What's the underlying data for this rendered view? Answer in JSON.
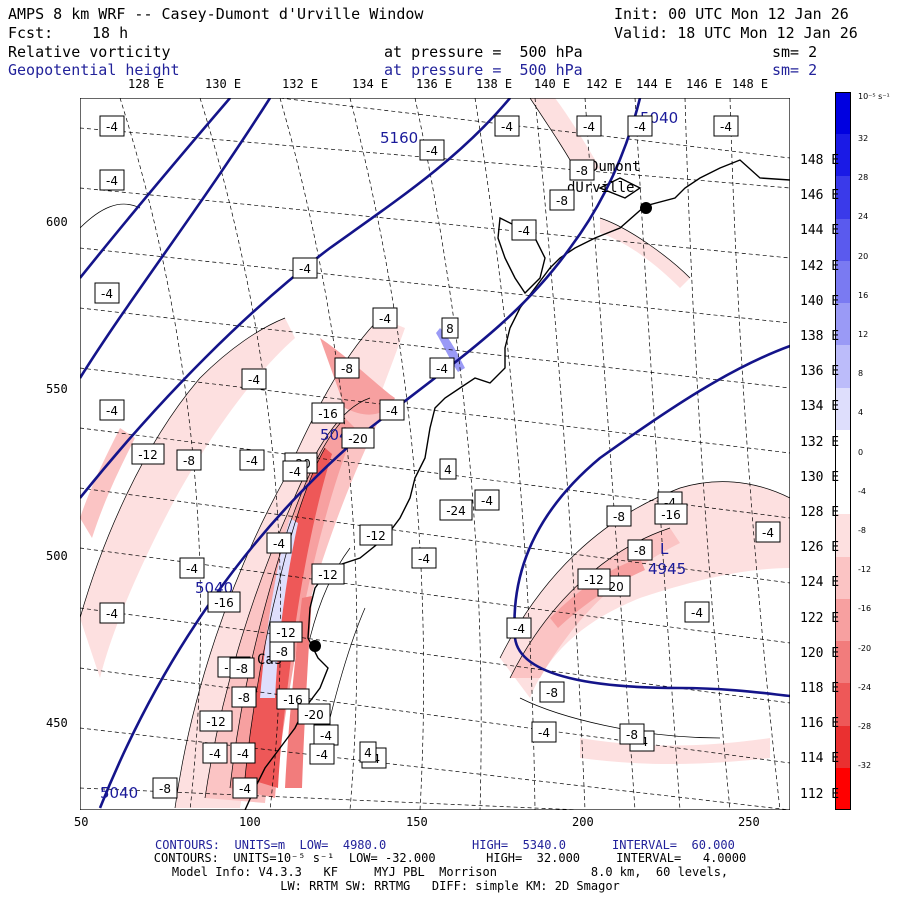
{
  "header": {
    "title": "AMPS 8 km WRF -- Casey-Dumont d'Urville Window",
    "init": "Init: 00 UTC Mon 12 Jan 26",
    "fcst_label": "Fcst:",
    "fcst_value": "18 h",
    "valid": "Valid: 18 UTC Mon 12 Jan 26",
    "field1": "Relative vorticity",
    "field2": "Geopotential height",
    "pressure1": "at pressure =  500 hPa",
    "pressure2": "at pressure =  500 hPa",
    "sm1": "sm= 2",
    "sm2": "sm= 2"
  },
  "axes": {
    "x_ticks": [
      "50",
      "100",
      "150",
      "200",
      "250"
    ],
    "y_ticks": [
      "600",
      "550",
      "500",
      "450"
    ],
    "lon_labels": [
      "128 E",
      "130 E",
      "132 E",
      "134 E",
      "136 E",
      "138 E",
      "140 E",
      "142 E",
      "144 E",
      "146 E",
      "148 E"
    ],
    "lat_labels": [
      "148 E",
      "146 E",
      "144 E",
      "142 E",
      "140 E",
      "138 E",
      "136 E",
      "134 E",
      "132 E",
      "130 E",
      "128 E",
      "126 E",
      "124 E",
      "122 E",
      "120 E",
      "118 E",
      "116 E",
      "114 E",
      "112 E"
    ]
  },
  "colorbar": {
    "unit_label": "10⁻⁵ s⁻¹",
    "labels": [
      "32",
      "28",
      "24",
      "20",
      "16",
      "12",
      "8",
      "4",
      "0",
      "-4",
      "-8",
      "-12",
      "-16",
      "-20",
      "-24",
      "-28",
      "-32"
    ],
    "colors": [
      "#0000e0",
      "#1a1ae6",
      "#3a3aea",
      "#5a5aee",
      "#7a7af2",
      "#9a9af6",
      "#bcbcfa",
      "#dedefc",
      "#ffffff",
      "#ffffff",
      "#fde0e0",
      "#fbc4c4",
      "#f7a0a0",
      "#f27c7c",
      "#ee5858",
      "#ea3030",
      "#ff0000"
    ]
  },
  "map_labels": {
    "height_5160": "5160",
    "height_5040_a": "5040",
    "height_5040_b": "5040",
    "height_5040_c": "5040",
    "height_5040_d": "5040",
    "low_value": "4945",
    "low_marker": "L",
    "casey": "Cas",
    "dumont_line1": "Dumont",
    "dumont_line2": "dUrville",
    "vort_boxes": [
      "-4",
      "-4",
      "-4",
      "-4",
      "-4",
      "-4",
      "-4",
      "-4",
      "-8",
      "-4",
      "-4",
      "-8",
      "-4",
      "-4",
      "-4",
      "-16",
      "-4",
      "-8",
      "-4",
      "-12",
      "-8",
      "-20",
      "-4",
      "-24",
      "-4",
      "-4",
      "-4",
      "-4",
      "-20",
      "-4",
      "-12",
      "-4",
      "-8",
      "-16",
      "-4",
      "-12",
      "-12",
      "-8",
      "-16",
      "-4",
      "-20",
      "-4",
      "-8",
      "-12",
      "-8",
      "-4",
      "-4",
      "-8",
      "-4",
      "-4",
      "-12",
      "-4",
      "-4",
      "-4",
      "-4",
      "-8",
      "-4",
      "-16",
      "-8",
      "-12",
      "-20",
      "-8",
      "4",
      "4",
      "8"
    ]
  },
  "footer": {
    "line1_a": "CONTOURS:  UNITS=m  LOW=  4980.0",
    "line1_b": "HIGH=  5340.0",
    "line1_c": "INTERVAL=  60.000",
    "line2": "CONTOURS:  UNITS=10⁻⁵ s⁻¹  LOW= -32.000       HIGH=  32.000     INTERVAL=   4.0000",
    "line3": "Model Info: V4.3.3   KF     MYJ PBL  Morrison             8.0 km,  60 levels,",
    "line4": "LW: RRTM SW: RRTMG   DIFF: simple KM: 2D Smagor"
  }
}
